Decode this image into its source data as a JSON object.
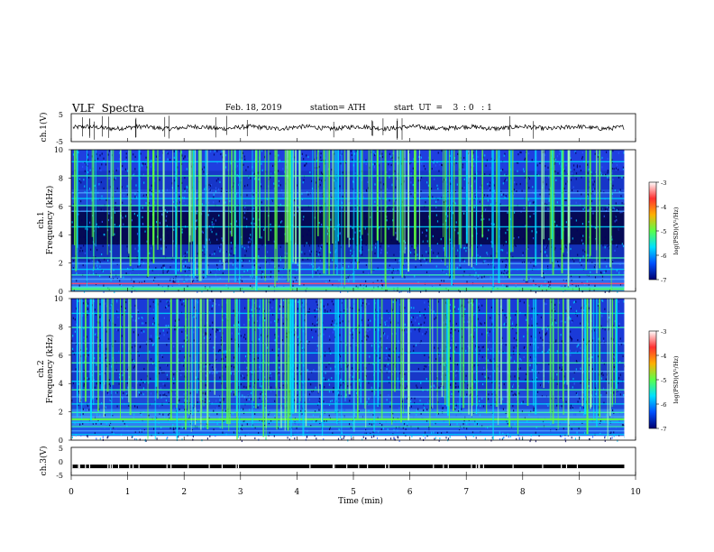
{
  "header": {
    "title": "VLF  Spectra",
    "date": "Feb. 18, 2019",
    "station": "station= ATH",
    "start_ut": "start  UT  =    3  : 0   : 1"
  },
  "colorbar": {
    "ticks": [
      "-3",
      "-4",
      "-5",
      "-6",
      "-7"
    ],
    "label": "log(PSD)(V²/Hz)",
    "stops": [
      "#ffffff",
      "#ff3030",
      "#ffb000",
      "#5aff4a",
      "#00e0ff",
      "#0050ff",
      "#000070"
    ]
  },
  "chart_data": [
    {
      "type": "line",
      "panel": "ch1_waveform",
      "ylabel": "ch.1(V)",
      "ylim": [
        -5,
        5
      ],
      "ytick_labels": [
        "5",
        "-5"
      ],
      "x_range_min": [
        0,
        9.8
      ],
      "baseline_value": 0,
      "series": [
        {
          "values_note": "noisy signal around 0 V"
        }
      ]
    },
    {
      "type": "heatmap",
      "panel": "ch1_spectrogram",
      "ylabel_lines": [
        "ch.1",
        "Frequency  (kHz)"
      ],
      "ylim": [
        0,
        10
      ],
      "ytick_labels": [
        "10",
        "8",
        "6",
        "4",
        "2",
        "0"
      ],
      "x_range_min": [
        0,
        9.8
      ]
    },
    {
      "type": "heatmap",
      "panel": "ch2_spectrogram",
      "ylabel_lines": [
        "ch.2",
        "Frequency  (kHz)"
      ],
      "ylim": [
        0,
        10
      ],
      "ytick_labels": [
        "10",
        "8",
        "6",
        "4",
        "2",
        "0"
      ],
      "x_range_min": [
        0,
        9.8
      ]
    },
    {
      "type": "line",
      "panel": "ch3_waveform",
      "ylabel": "ch.3(V)",
      "ylim": [
        -5,
        5
      ],
      "ytick_labels": [
        "5",
        "0",
        "-5"
      ],
      "x_range_min": [
        0,
        9.8
      ],
      "series": [
        {
          "values": [
            -1.8
          ]
        }
      ]
    }
  ],
  "xaxis": {
    "label": "Time  (min)",
    "ticks": [
      "0",
      "1",
      "2",
      "3",
      "4",
      "5",
      "6",
      "7",
      "8",
      "9",
      "10"
    ],
    "range": [
      0,
      10
    ]
  }
}
